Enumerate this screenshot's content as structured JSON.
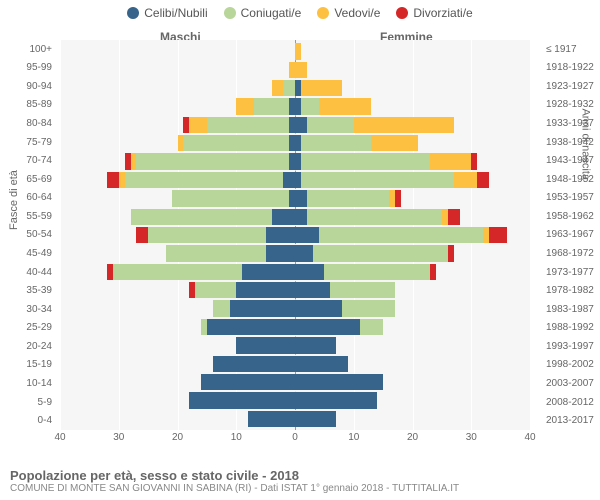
{
  "chart": {
    "type": "population-pyramid",
    "background_color": "#f6f6f6",
    "grid_color": "#ffffff",
    "categories": [
      {
        "key": "celibi",
        "label": "Celibi/Nubili",
        "color": "#36648b"
      },
      {
        "key": "coniugati",
        "label": "Coniugati/e",
        "color": "#b8d59a"
      },
      {
        "key": "vedovi",
        "label": "Vedovi/e",
        "color": "#fdc040"
      },
      {
        "key": "divorziati",
        "label": "Divorziati/e",
        "color": "#d62728"
      }
    ],
    "side_labels": {
      "male": "Maschi",
      "female": "Femmine"
    },
    "axis_titles": {
      "left": "Fasce di età",
      "right": "Anni di nascita"
    },
    "x_axis": {
      "min": -40,
      "max": 40,
      "ticks": [
        40,
        30,
        20,
        10,
        0,
        0,
        10,
        20,
        30,
        40
      ]
    },
    "age_bands": [
      "0-4",
      "5-9",
      "10-14",
      "15-19",
      "20-24",
      "25-29",
      "30-34",
      "35-39",
      "40-44",
      "45-49",
      "50-54",
      "55-59",
      "60-64",
      "65-69",
      "70-74",
      "75-79",
      "80-84",
      "85-89",
      "90-94",
      "95-99",
      "100+"
    ],
    "birth_years": [
      "2013-2017",
      "2008-2012",
      "2003-2007",
      "1998-2002",
      "1993-1997",
      "1988-1992",
      "1983-1987",
      "1978-1982",
      "1973-1977",
      "1968-1972",
      "1963-1967",
      "1958-1962",
      "1953-1957",
      "1948-1952",
      "1943-1947",
      "1938-1942",
      "1933-1937",
      "1928-1932",
      "1923-1927",
      "1918-1922",
      "≤ 1917"
    ],
    "data": {
      "male": [
        {
          "celibi": 8,
          "coniugati": 0,
          "vedovi": 0,
          "divorziati": 0
        },
        {
          "celibi": 18,
          "coniugati": 0,
          "vedovi": 0,
          "divorziati": 0
        },
        {
          "celibi": 16,
          "coniugati": 0,
          "vedovi": 0,
          "divorziati": 0
        },
        {
          "celibi": 14,
          "coniugati": 0,
          "vedovi": 0,
          "divorziati": 0
        },
        {
          "celibi": 10,
          "coniugati": 0,
          "vedovi": 0,
          "divorziati": 0
        },
        {
          "celibi": 15,
          "coniugati": 1,
          "vedovi": 0,
          "divorziati": 0
        },
        {
          "celibi": 11,
          "coniugati": 3,
          "vedovi": 0,
          "divorziati": 0
        },
        {
          "celibi": 10,
          "coniugati": 7,
          "vedovi": 0,
          "divorziati": 1
        },
        {
          "celibi": 9,
          "coniugati": 22,
          "vedovi": 0,
          "divorziati": 1
        },
        {
          "celibi": 5,
          "coniugati": 17,
          "vedovi": 0,
          "divorziati": 0
        },
        {
          "celibi": 5,
          "coniugati": 20,
          "vedovi": 0,
          "divorziati": 2
        },
        {
          "celibi": 4,
          "coniugati": 24,
          "vedovi": 0,
          "divorziati": 0
        },
        {
          "celibi": 1,
          "coniugati": 20,
          "vedovi": 0,
          "divorziati": 0
        },
        {
          "celibi": 2,
          "coniugati": 27,
          "vedovi": 1,
          "divorziati": 2
        },
        {
          "celibi": 1,
          "coniugati": 26,
          "vedovi": 1,
          "divorziati": 1
        },
        {
          "celibi": 1,
          "coniugati": 18,
          "vedovi": 1,
          "divorziati": 0
        },
        {
          "celibi": 1,
          "coniugati": 14,
          "vedovi": 3,
          "divorziati": 1
        },
        {
          "celibi": 1,
          "coniugati": 6,
          "vedovi": 3,
          "divorziati": 0
        },
        {
          "celibi": 0,
          "coniugati": 2,
          "vedovi": 2,
          "divorziati": 0
        },
        {
          "celibi": 0,
          "coniugati": 0,
          "vedovi": 1,
          "divorziati": 0
        },
        {
          "celibi": 0,
          "coniugati": 0,
          "vedovi": 0,
          "divorziati": 0
        }
      ],
      "female": [
        {
          "celibi": 7,
          "coniugati": 0,
          "vedovi": 0,
          "divorziati": 0
        },
        {
          "celibi": 14,
          "coniugati": 0,
          "vedovi": 0,
          "divorziati": 0
        },
        {
          "celibi": 15,
          "coniugati": 0,
          "vedovi": 0,
          "divorziati": 0
        },
        {
          "celibi": 9,
          "coniugati": 0,
          "vedovi": 0,
          "divorziati": 0
        },
        {
          "celibi": 7,
          "coniugati": 0,
          "vedovi": 0,
          "divorziati": 0
        },
        {
          "celibi": 11,
          "coniugati": 4,
          "vedovi": 0,
          "divorziati": 0
        },
        {
          "celibi": 8,
          "coniugati": 9,
          "vedovi": 0,
          "divorziati": 0
        },
        {
          "celibi": 6,
          "coniugati": 11,
          "vedovi": 0,
          "divorziati": 0
        },
        {
          "celibi": 5,
          "coniugati": 18,
          "vedovi": 0,
          "divorziati": 1
        },
        {
          "celibi": 3,
          "coniugati": 23,
          "vedovi": 0,
          "divorziati": 1
        },
        {
          "celibi": 4,
          "coniugati": 28,
          "vedovi": 1,
          "divorziati": 3
        },
        {
          "celibi": 2,
          "coniugati": 23,
          "vedovi": 1,
          "divorziati": 2
        },
        {
          "celibi": 2,
          "coniugati": 14,
          "vedovi": 1,
          "divorziati": 1
        },
        {
          "celibi": 1,
          "coniugati": 26,
          "vedovi": 4,
          "divorziati": 2
        },
        {
          "celibi": 1,
          "coniugati": 22,
          "vedovi": 7,
          "divorziati": 1
        },
        {
          "celibi": 1,
          "coniugati": 12,
          "vedovi": 8,
          "divorziati": 0
        },
        {
          "celibi": 2,
          "coniugati": 8,
          "vedovi": 17,
          "divorziati": 0
        },
        {
          "celibi": 1,
          "coniugati": 3,
          "vedovi": 9,
          "divorziati": 0
        },
        {
          "celibi": 1,
          "coniugati": 0,
          "vedovi": 7,
          "divorziati": 0
        },
        {
          "celibi": 0,
          "coniugati": 0,
          "vedovi": 2,
          "divorziati": 0
        },
        {
          "celibi": 0,
          "coniugati": 0,
          "vedovi": 1,
          "divorziati": 0
        }
      ]
    },
    "footer": {
      "title": "Popolazione per età, sesso e stato civile - 2018",
      "subtitle": "COMUNE DI MONTE SAN GIOVANNI IN SABINA (RI) - Dati ISTAT 1° gennaio 2018 - TUTTITALIA.IT"
    }
  }
}
